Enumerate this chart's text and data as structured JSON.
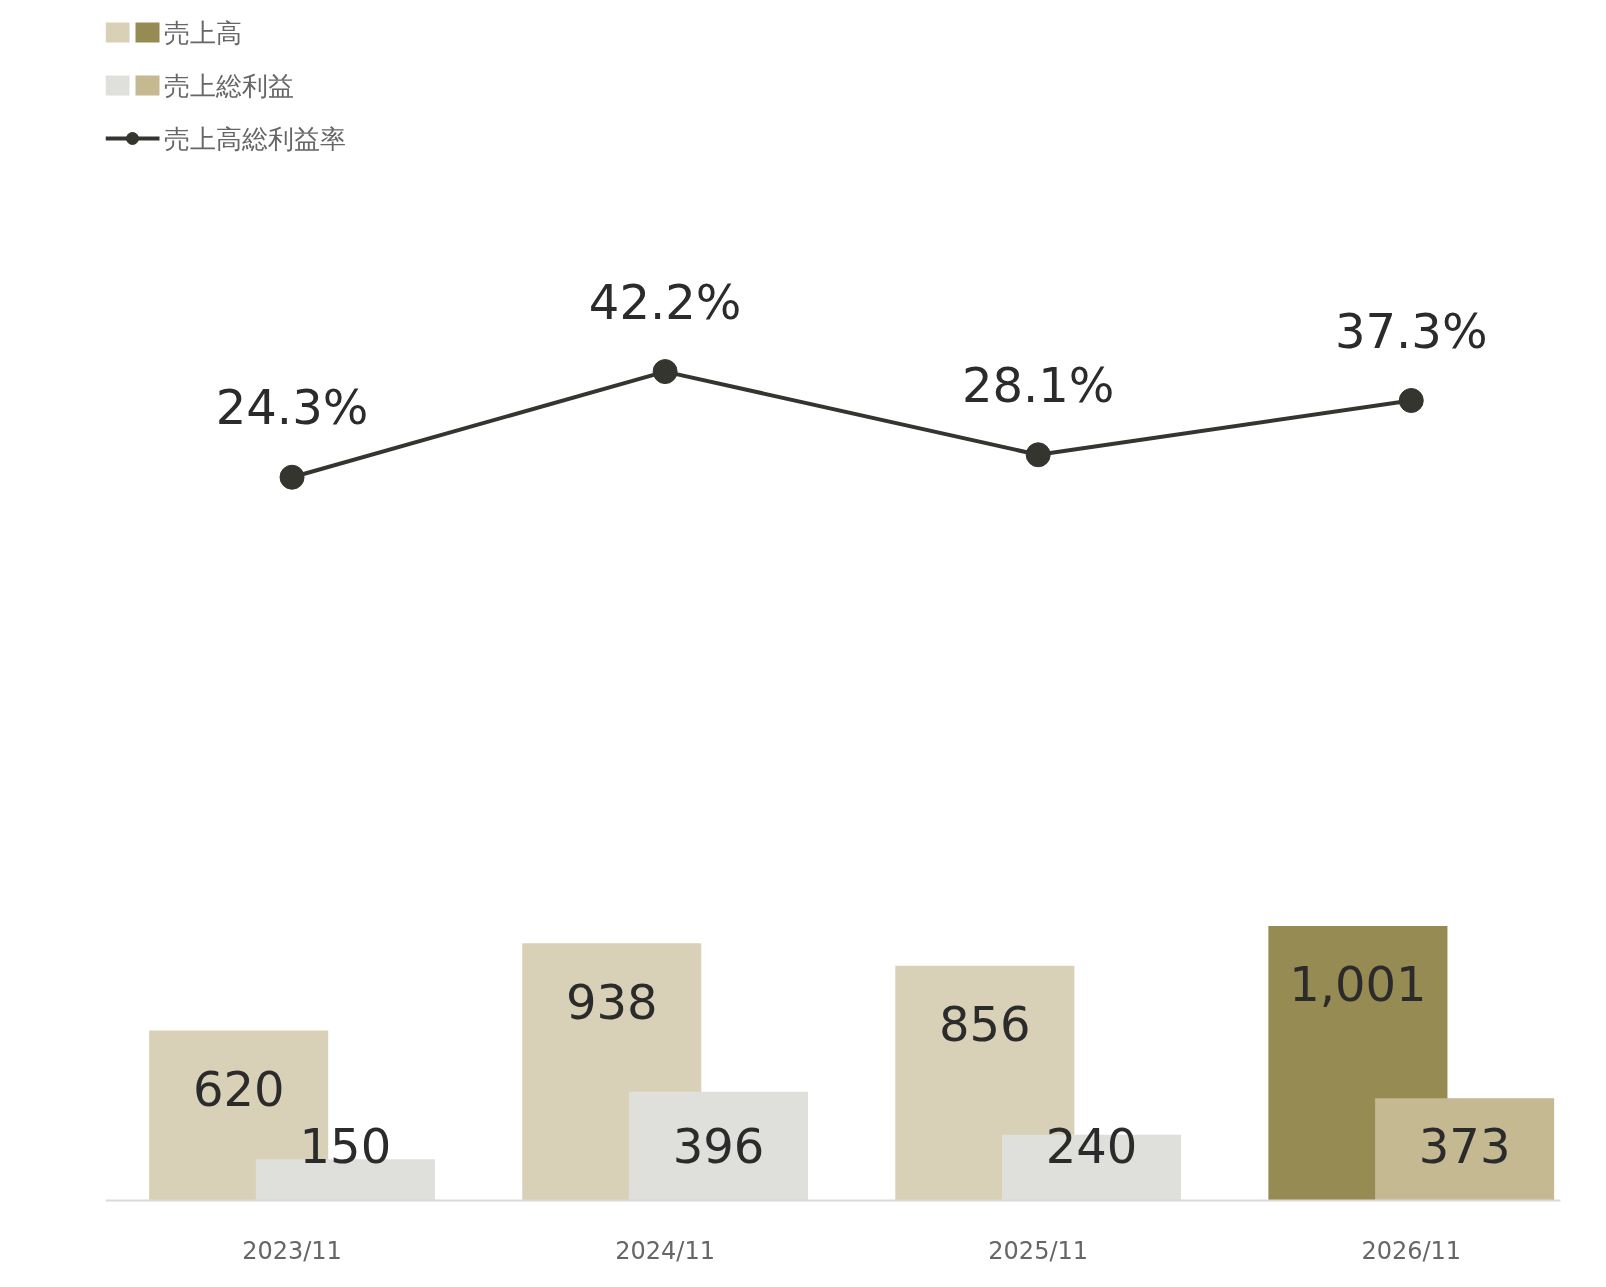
{
  "chart_data": [
    {
      "type": "line",
      "categories": [
        "2023/11",
        "2024/11",
        "2025/11",
        "2026/11"
      ],
      "tick_labels": false,
      "legend": "top left",
      "grid": false,
      "marker": "circle",
      "series": [
        {
          "name": "売上高総利益率",
          "color": "#353530",
          "values": [
            24.3,
            42.2,
            28.1,
            37.3
          ],
          "value_labels": [
            "24.3%",
            "42.2%",
            "28.1%",
            "37.3%"
          ]
        }
      ]
    },
    {
      "type": "bar",
      "categories": [
        "2023/11",
        "2024/11",
        "2025/11",
        "2026/11"
      ],
      "tick_labels": "x",
      "legend": "top left",
      "grid": false,
      "series": [
        {
          "name": "売上高",
          "colors": [
            "#d8d1b7",
            "#d8d1b7",
            "#d8d1b7",
            "#968c53"
          ],
          "values": [
            620,
            938,
            856,
            1001
          ],
          "value_labels": [
            "620",
            "938",
            "856",
            "1,001"
          ]
        },
        {
          "name": "売上総利益",
          "colors": [
            "#dfdfdb",
            "#dfdfdb",
            "#dfdfdb",
            "#c4b990"
          ],
          "values": [
            150,
            396,
            240,
            373
          ],
          "value_labels": [
            "150",
            "396",
            "240",
            "373"
          ]
        }
      ]
    }
  ]
}
